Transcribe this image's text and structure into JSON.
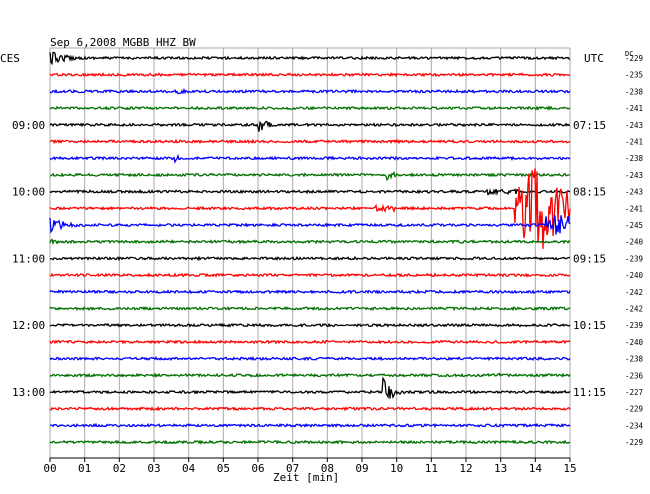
{
  "chart_data": {
    "type": "line",
    "title": "Sep 6,2008   MGBB HHZ BW",
    "left_zone": "CES",
    "right_zone": "UTC",
    "dc_label": "DC",
    "xlabel": "Zeit [min]",
    "xlim": [
      0,
      15
    ],
    "x_ticks": [
      "00",
      "01",
      "02",
      "03",
      "04",
      "05",
      "06",
      "07",
      "08",
      "09",
      "10",
      "11",
      "12",
      "13",
      "14",
      "15"
    ],
    "grid": true,
    "trace_minutes_per_line": 15,
    "left_hour_labels": [
      {
        "trace": 4,
        "label": "09:00"
      },
      {
        "trace": 8,
        "label": "10:00"
      },
      {
        "trace": 12,
        "label": "11:00"
      },
      {
        "trace": 16,
        "label": "12:00"
      },
      {
        "trace": 20,
        "label": "13:00"
      }
    ],
    "right_time_labels": [
      {
        "trace": 4,
        "label": "07:15"
      },
      {
        "trace": 8,
        "label": "08:15"
      },
      {
        "trace": 12,
        "label": "09:15"
      },
      {
        "trace": 16,
        "label": "10:15"
      },
      {
        "trace": 20,
        "label": "11:15"
      }
    ],
    "trace_colors": [
      "#000000",
      "#ff0000",
      "#0000ff",
      "#007000"
    ],
    "dc_offsets": [
      -229,
      -235,
      -238,
      -241,
      -243,
      -241,
      -238,
      -243,
      -243,
      -241,
      -245,
      -240,
      -239,
      -240,
      -242,
      -242,
      -239,
      -240,
      -238,
      -236,
      -227,
      -229,
      -234,
      -229
    ],
    "events": [
      {
        "trace": 0,
        "start_min": 0.0,
        "duration_min": 1.6,
        "amplitude": 7,
        "kind": "decay"
      },
      {
        "trace": 1,
        "start_min": 2.5,
        "duration_min": 0.3,
        "amplitude": 3,
        "kind": "decay"
      },
      {
        "trace": 2,
        "start_min": 3.6,
        "duration_min": 1.1,
        "amplitude": 4,
        "kind": "decay"
      },
      {
        "trace": 4,
        "start_min": 6.0,
        "duration_min": 0.6,
        "amplitude": 13,
        "kind": "decay"
      },
      {
        "trace": 5,
        "start_min": 7.3,
        "duration_min": 0.5,
        "amplitude": 2,
        "kind": "decay"
      },
      {
        "trace": 6,
        "start_min": 3.6,
        "duration_min": 0.5,
        "amplitude": 4,
        "kind": "decay"
      },
      {
        "trace": 7,
        "start_min": 9.7,
        "duration_min": 0.5,
        "amplitude": 9,
        "kind": "decay"
      },
      {
        "trace": 8,
        "start_min": 12.6,
        "duration_min": 0.9,
        "amplitude": 3,
        "kind": "flat"
      },
      {
        "trace": 9,
        "start_min": 6.3,
        "duration_min": 0.3,
        "amplitude": 3,
        "kind": "decay"
      },
      {
        "trace": 9,
        "start_min": 9.4,
        "duration_min": 0.6,
        "amplitude": 3,
        "kind": "flat"
      },
      {
        "trace": 9,
        "start_min": 13.4,
        "duration_min": 1.6,
        "amplitude": 44,
        "kind": "burst"
      },
      {
        "trace": 10,
        "start_min": 0.0,
        "duration_min": 1.8,
        "amplitude": 8,
        "kind": "decay"
      },
      {
        "trace": 10,
        "start_min": 14.3,
        "duration_min": 0.7,
        "amplitude": 10,
        "kind": "flat"
      },
      {
        "trace": 11,
        "start_min": 0.0,
        "duration_min": 1.0,
        "amplitude": 3,
        "kind": "decay"
      },
      {
        "trace": 19,
        "start_min": 12.6,
        "duration_min": 0.4,
        "amplitude": 2,
        "kind": "flat"
      },
      {
        "trace": 20,
        "start_min": 9.6,
        "duration_min": 0.9,
        "amplitude": 14,
        "kind": "decay"
      }
    ]
  }
}
